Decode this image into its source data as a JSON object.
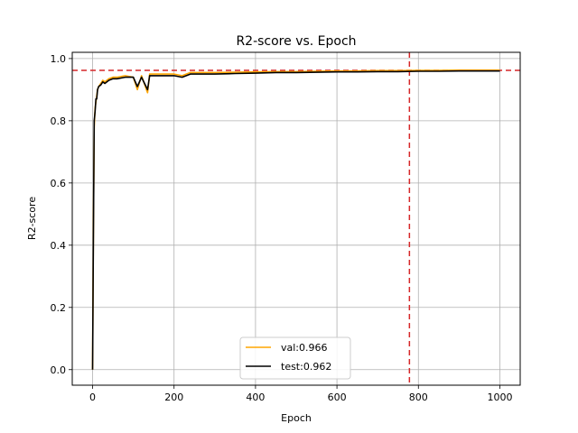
{
  "chart_data": {
    "type": "line",
    "title": "R2-score vs. Epoch",
    "xlabel": "Epoch",
    "ylabel": "R2-score",
    "xlim": [
      -50,
      1050
    ],
    "ylim": [
      -0.05,
      1.02
    ],
    "xticks": [
      0,
      200,
      400,
      600,
      800,
      1000
    ],
    "yticks": [
      0.0,
      0.2,
      0.4,
      0.6,
      0.8,
      1.0
    ],
    "xtick_labels": [
      "0",
      "200",
      "400",
      "600",
      "800",
      "1000"
    ],
    "ytick_labels": [
      "0.0",
      "0.2",
      "0.4",
      "0.6",
      "0.8",
      "1.0"
    ],
    "grid": true,
    "legend_position": "lower center",
    "reference_lines": {
      "horizontal_y": 0.962,
      "vertical_x": 778,
      "color": "#d62728"
    },
    "series": [
      {
        "name": "val:0.966",
        "color": "#ffa500",
        "x": [
          0,
          2,
          4,
          6,
          8,
          10,
          12,
          15,
          20,
          25,
          30,
          40,
          50,
          60,
          80,
          100,
          110,
          120,
          135,
          140,
          160,
          180,
          200,
          220,
          240,
          260,
          280,
          300,
          350,
          400,
          450,
          500,
          550,
          600,
          650,
          700,
          750,
          800,
          850,
          900,
          950,
          1000
        ],
        "y": [
          0.0,
          0.45,
          0.78,
          0.84,
          0.86,
          0.88,
          0.9,
          0.91,
          0.92,
          0.93,
          0.925,
          0.935,
          0.94,
          0.94,
          0.945,
          0.94,
          0.9,
          0.945,
          0.89,
          0.95,
          0.95,
          0.95,
          0.95,
          0.945,
          0.955,
          0.955,
          0.955,
          0.955,
          0.956,
          0.957,
          0.958,
          0.958,
          0.959,
          0.96,
          0.96,
          0.961,
          0.961,
          0.962,
          0.962,
          0.963,
          0.963,
          0.963
        ]
      },
      {
        "name": "test:0.962",
        "color": "#000000",
        "x": [
          0,
          2,
          4,
          6,
          8,
          10,
          12,
          15,
          20,
          25,
          30,
          40,
          50,
          60,
          80,
          100,
          110,
          120,
          135,
          140,
          160,
          180,
          200,
          220,
          240,
          260,
          280,
          300,
          350,
          400,
          450,
          500,
          550,
          600,
          650,
          700,
          750,
          800,
          850,
          900,
          950,
          1000
        ],
        "y": [
          0.0,
          0.42,
          0.8,
          0.83,
          0.87,
          0.87,
          0.9,
          0.91,
          0.915,
          0.925,
          0.92,
          0.93,
          0.935,
          0.935,
          0.94,
          0.94,
          0.91,
          0.94,
          0.9,
          0.945,
          0.945,
          0.945,
          0.945,
          0.94,
          0.95,
          0.95,
          0.95,
          0.95,
          0.952,
          0.953,
          0.955,
          0.955,
          0.956,
          0.957,
          0.957,
          0.958,
          0.958,
          0.959,
          0.959,
          0.96,
          0.96,
          0.96
        ]
      }
    ]
  }
}
